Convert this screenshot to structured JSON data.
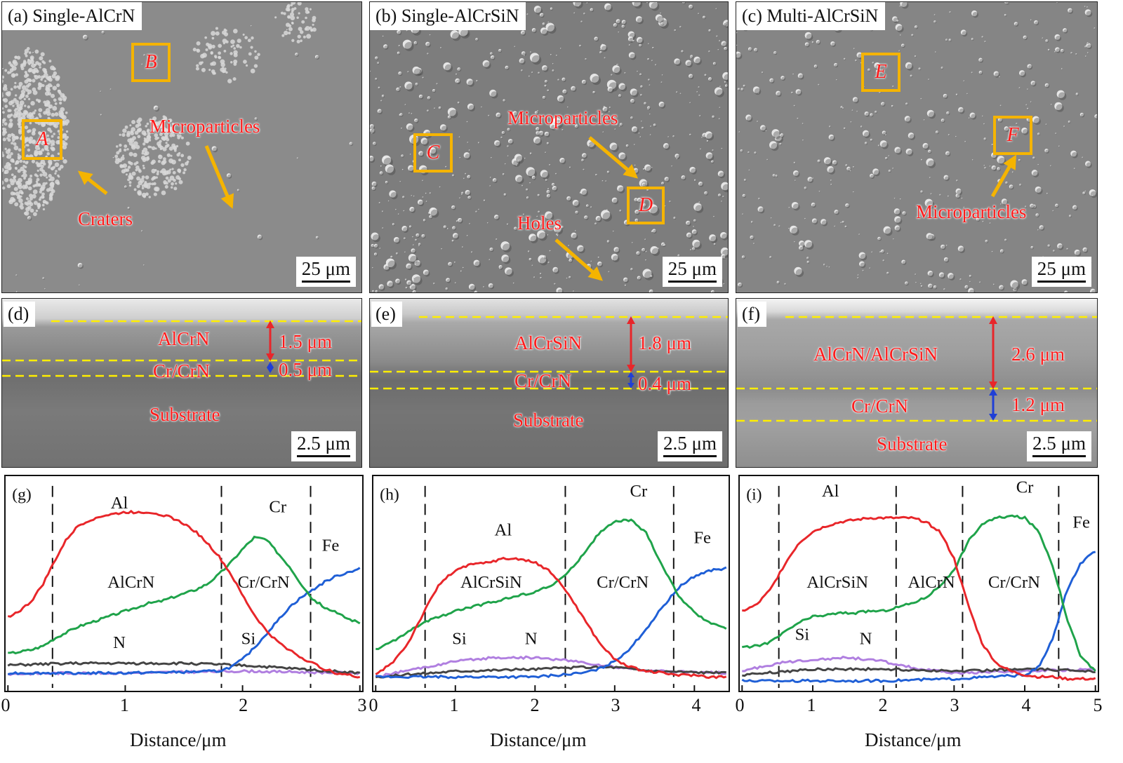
{
  "surface": [
    {
      "title": "(a) Single-AlCrN",
      "scale": "25 μm",
      "annotations": {
        "craters": "Craters",
        "micro": "Microparticles"
      },
      "boxes": [
        {
          "label": "A"
        },
        {
          "label": "B"
        }
      ]
    },
    {
      "title": "(b) Single-AlCrSiN",
      "scale": "25 μm",
      "annotations": {
        "micro": "Microparticles",
        "holes": "Holes"
      },
      "boxes": [
        {
          "label": "C"
        },
        {
          "label": "D"
        }
      ]
    },
    {
      "title": "(c) Multi-AlCrSiN",
      "scale": "25 μm",
      "annotations": {
        "micro": "Microparticles"
      },
      "boxes": [
        {
          "label": "E"
        },
        {
          "label": "F"
        }
      ]
    }
  ],
  "cross_sections": [
    {
      "label": "(d)",
      "scale": "2.5 μm",
      "layer_top": "AlCrN",
      "layer_mid": "Cr/CrN",
      "substrate": "Substrate",
      "thick_top": "1.5 μm",
      "thick_mid": "0.5 μm"
    },
    {
      "label": "(e)",
      "scale": "2.5 μm",
      "layer_top": "AlCrSiN",
      "layer_mid": "Cr/CrN",
      "substrate": "Substrate",
      "thick_top": "1.8 μm",
      "thick_mid": "0.4 μm"
    },
    {
      "label": "(f)",
      "scale": "2.5 μm",
      "layer_top": "AlCrN/AlCrSiN",
      "layer_mid": "Cr/CrN",
      "substrate": "Substrate",
      "thick_top": "2.6 μm",
      "thick_mid": "1.2 μm"
    }
  ],
  "colors": {
    "Al": "#e8262a",
    "Cr": "#1fa34a",
    "Fe": "#1f5fd6",
    "N": "#444444",
    "Si": "#b07fe0",
    "box": "#f5b400",
    "annot": "#ff1a1a"
  },
  "chart_data": [
    {
      "type": "line",
      "label": "(g)",
      "xlabel": "Distance/μm",
      "xlim": [
        0,
        3
      ],
      "xticks": [
        0,
        1,
        2,
        3
      ],
      "vlines": [
        0.38,
        1.82,
        2.58
      ],
      "region_labels": [
        {
          "text": "AlCrN",
          "x": 1.05
        },
        {
          "text": "Cr/CrN",
          "x": 2.18
        }
      ],
      "series": [
        {
          "name": "Al",
          "x": [
            0,
            0.1,
            0.2,
            0.3,
            0.4,
            0.5,
            0.6,
            0.7,
            0.8,
            0.9,
            1.0,
            1.1,
            1.2,
            1.3,
            1.4,
            1.5,
            1.6,
            1.7,
            1.8,
            1.9,
            2.0,
            2.1,
            2.2,
            2.3,
            2.4,
            2.5,
            2.6,
            2.7,
            2.8,
            2.9,
            3.0
          ],
          "y": [
            0.36,
            0.39,
            0.44,
            0.53,
            0.65,
            0.76,
            0.83,
            0.86,
            0.88,
            0.89,
            0.9,
            0.9,
            0.9,
            0.89,
            0.87,
            0.84,
            0.8,
            0.74,
            0.67,
            0.58,
            0.47,
            0.37,
            0.29,
            0.23,
            0.19,
            0.15,
            0.12,
            0.09,
            0.07,
            0.06,
            0.05
          ]
        },
        {
          "name": "Cr",
          "x": [
            0,
            0.1,
            0.2,
            0.3,
            0.4,
            0.5,
            0.6,
            0.7,
            0.8,
            0.9,
            1.0,
            1.1,
            1.2,
            1.3,
            1.4,
            1.5,
            1.6,
            1.7,
            1.8,
            1.9,
            2.0,
            2.1,
            2.2,
            2.3,
            2.4,
            2.5,
            2.6,
            2.7,
            2.8,
            2.9,
            3.0
          ],
          "y": [
            0.17,
            0.18,
            0.19,
            0.21,
            0.25,
            0.28,
            0.31,
            0.33,
            0.35,
            0.37,
            0.39,
            0.41,
            0.43,
            0.44,
            0.46,
            0.48,
            0.5,
            0.53,
            0.58,
            0.64,
            0.71,
            0.77,
            0.76,
            0.69,
            0.62,
            0.53,
            0.45,
            0.41,
            0.38,
            0.35,
            0.33
          ]
        },
        {
          "name": "Fe",
          "x": [
            0,
            0.5,
            1.0,
            1.5,
            1.8,
            1.9,
            2.0,
            2.1,
            2.2,
            2.3,
            2.4,
            2.5,
            2.6,
            2.7,
            2.8,
            2.9,
            3.0
          ],
          "y": [
            0.07,
            0.07,
            0.07,
            0.075,
            0.08,
            0.1,
            0.14,
            0.2,
            0.27,
            0.34,
            0.41,
            0.46,
            0.5,
            0.54,
            0.57,
            0.59,
            0.61
          ]
        },
        {
          "name": "N",
          "x": [
            0,
            0.5,
            1.0,
            1.5,
            2.0,
            2.5,
            3.0
          ],
          "y": [
            0.11,
            0.12,
            0.12,
            0.12,
            0.11,
            0.09,
            0.07
          ]
        },
        {
          "name": "Si",
          "x": [
            0,
            0.5,
            1.0,
            1.5,
            2.0,
            2.5,
            3.0
          ],
          "y": [
            0.065,
            0.07,
            0.07,
            0.075,
            0.08,
            0.075,
            0.07
          ]
        }
      ],
      "labels": [
        "Al",
        "Cr",
        "Fe",
        "N",
        "Si"
      ]
    },
    {
      "type": "line",
      "label": "(h)",
      "xlabel": "Distance/μm",
      "xlim": [
        0,
        4.4
      ],
      "xticks": [
        0,
        1,
        2,
        3,
        4
      ],
      "vlines": [
        0.62,
        2.38,
        3.74
      ],
      "region_labels": [
        {
          "text": "AlCrSiN",
          "x": 1.45
        },
        {
          "text": "Cr/CrN",
          "x": 3.1
        }
      ],
      "series": [
        {
          "name": "Al",
          "x": [
            0,
            0.2,
            0.4,
            0.6,
            0.8,
            1.0,
            1.2,
            1.4,
            1.6,
            1.8,
            2.0,
            2.2,
            2.4,
            2.6,
            2.8,
            3.0,
            3.2,
            3.4,
            3.6,
            3.8,
            4.0,
            4.2,
            4.4
          ],
          "y": [
            0.06,
            0.12,
            0.22,
            0.38,
            0.53,
            0.6,
            0.63,
            0.64,
            0.66,
            0.66,
            0.64,
            0.59,
            0.49,
            0.36,
            0.23,
            0.14,
            0.1,
            0.08,
            0.07,
            0.06,
            0.06,
            0.05,
            0.05
          ]
        },
        {
          "name": "Cr",
          "x": [
            0,
            0.2,
            0.4,
            0.6,
            0.8,
            1.0,
            1.2,
            1.4,
            1.6,
            1.8,
            2.0,
            2.2,
            2.4,
            2.6,
            2.8,
            3.0,
            3.2,
            3.4,
            3.6,
            3.8,
            4.0,
            4.2,
            4.4
          ],
          "y": [
            0.19,
            0.23,
            0.28,
            0.33,
            0.36,
            0.39,
            0.41,
            0.43,
            0.45,
            0.47,
            0.49,
            0.52,
            0.58,
            0.68,
            0.79,
            0.85,
            0.86,
            0.79,
            0.62,
            0.47,
            0.38,
            0.33,
            0.3
          ]
        },
        {
          "name": "Fe",
          "x": [
            0,
            1.0,
            2.0,
            2.6,
            2.8,
            3.0,
            3.2,
            3.4,
            3.6,
            3.8,
            4.0,
            4.2,
            4.4
          ],
          "y": [
            0.05,
            0.05,
            0.05,
            0.07,
            0.09,
            0.13,
            0.2,
            0.3,
            0.41,
            0.51,
            0.57,
            0.6,
            0.61
          ]
        },
        {
          "name": "N",
          "x": [
            0,
            1.0,
            2.0,
            2.6,
            3.0,
            3.5,
            4.4
          ],
          "y": [
            0.05,
            0.08,
            0.09,
            0.1,
            0.1,
            0.08,
            0.07
          ]
        },
        {
          "name": "Si",
          "x": [
            0,
            0.5,
            1.0,
            1.5,
            2.0,
            2.5,
            3.0,
            3.5,
            4.4
          ],
          "y": [
            0.05,
            0.09,
            0.13,
            0.15,
            0.15,
            0.13,
            0.1,
            0.08,
            0.07
          ]
        }
      ],
      "labels": [
        "Al",
        "Cr",
        "Fe",
        "N",
        "Si"
      ]
    },
    {
      "type": "line",
      "label": "(i)",
      "xlabel": "Distance/μm",
      "xlim": [
        0,
        5
      ],
      "xticks": [
        0,
        1,
        2,
        3,
        4,
        5
      ],
      "vlines": [
        0.52,
        2.18,
        3.12,
        4.48
      ],
      "region_labels": [
        {
          "text": "AlCrSiN",
          "x": 1.35
        },
        {
          "text": "AlCrN",
          "x": 2.68
        },
        {
          "text": "Cr/CrN",
          "x": 3.85
        }
      ],
      "series": [
        {
          "name": "Al",
          "x": [
            0,
            0.2,
            0.4,
            0.6,
            0.8,
            1.0,
            1.2,
            1.4,
            1.6,
            1.8,
            2.0,
            2.2,
            2.4,
            2.6,
            2.8,
            3.0,
            3.2,
            3.4,
            3.6,
            3.8,
            4.0,
            4.2,
            4.4,
            4.6,
            4.8,
            5.0
          ],
          "y": [
            0.39,
            0.42,
            0.5,
            0.63,
            0.74,
            0.8,
            0.83,
            0.85,
            0.86,
            0.87,
            0.87,
            0.87,
            0.87,
            0.85,
            0.8,
            0.66,
            0.42,
            0.22,
            0.12,
            0.08,
            0.06,
            0.05,
            0.05,
            0.04,
            0.04,
            0.04
          ]
        },
        {
          "name": "Cr",
          "x": [
            0,
            0.2,
            0.4,
            0.6,
            0.8,
            1.0,
            1.2,
            1.4,
            1.6,
            1.8,
            2.0,
            2.2,
            2.4,
            2.6,
            2.8,
            3.0,
            3.2,
            3.4,
            3.6,
            3.8,
            4.0,
            4.2,
            4.4,
            4.6,
            4.8,
            5.0
          ],
          "y": [
            0.2,
            0.21,
            0.23,
            0.28,
            0.33,
            0.36,
            0.37,
            0.38,
            0.38,
            0.39,
            0.39,
            0.41,
            0.43,
            0.46,
            0.52,
            0.6,
            0.75,
            0.84,
            0.87,
            0.88,
            0.87,
            0.8,
            0.62,
            0.35,
            0.15,
            0.08
          ]
        },
        {
          "name": "Fe",
          "x": [
            0,
            1.0,
            2.0,
            3.0,
            4.0,
            4.2,
            4.4,
            4.6,
            4.8,
            5.0
          ],
          "y": [
            0.03,
            0.03,
            0.03,
            0.04,
            0.06,
            0.1,
            0.25,
            0.5,
            0.64,
            0.7
          ]
        },
        {
          "name": "N",
          "x": [
            0,
            1.0,
            2.0,
            3.0,
            4.0,
            5.0
          ],
          "y": [
            0.06,
            0.09,
            0.09,
            0.08,
            0.09,
            0.08
          ]
        },
        {
          "name": "Si",
          "x": [
            0,
            0.5,
            1.0,
            1.5,
            2.0,
            2.5,
            3.0,
            4.0,
            5.0
          ],
          "y": [
            0.08,
            0.12,
            0.14,
            0.15,
            0.13,
            0.09,
            0.07,
            0.08,
            0.09
          ]
        }
      ],
      "labels": [
        "Al",
        "Cr",
        "Fe",
        "N",
        "Si"
      ]
    }
  ]
}
